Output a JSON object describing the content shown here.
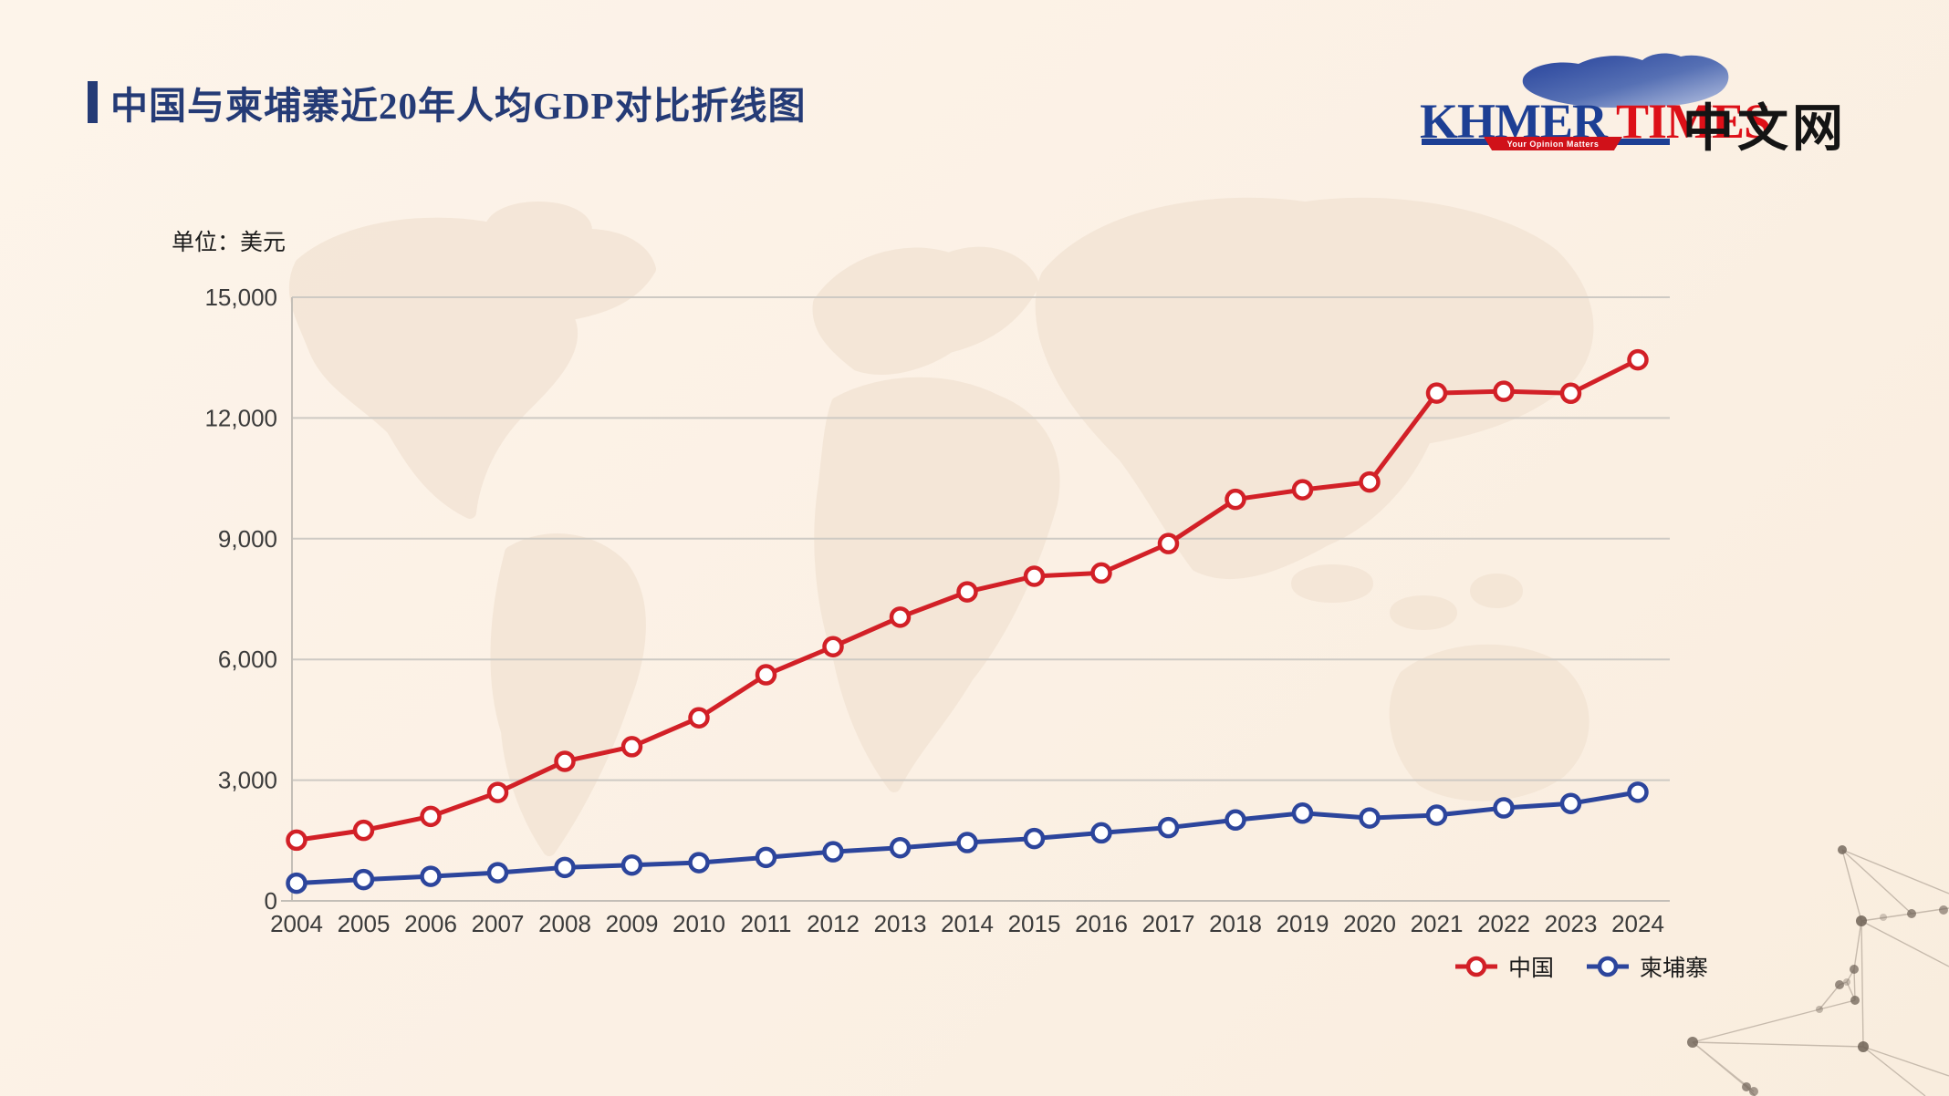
{
  "header": {
    "title": "中国与柬埔寨近20年人均GDP对比折线图"
  },
  "logo": {
    "khmer": "KHMER",
    "times": "TIMES",
    "tagline": "Your Opinion Matters",
    "site_name": "中文网",
    "khmer_color": "#1d3f94",
    "times_color": "#dd1018"
  },
  "chart_data": {
    "type": "line",
    "title": "中国与柬埔寨近20年人均GDP对比折线图",
    "unit_label": "单位：美元",
    "x": [
      "2004",
      "2005",
      "2006",
      "2007",
      "2008",
      "2009",
      "2010",
      "2011",
      "2012",
      "2013",
      "2014",
      "2015",
      "2016",
      "2017",
      "2018",
      "2019",
      "2020",
      "2021",
      "2022",
      "2023",
      "2024"
    ],
    "series": [
      {
        "name": "中国",
        "color": "#d22027",
        "values": [
          1509,
          1753,
          2099,
          2694,
          3468,
          3832,
          4550,
          5618,
          6317,
          7051,
          7679,
          8067,
          8148,
          8879,
          9977,
          10217,
          10409,
          12618,
          12663,
          12614,
          13445
        ]
      },
      {
        "name": "柬埔寨",
        "color": "#2c459c",
        "values": [
          440,
          530,
          610,
          700,
          830,
          890,
          950,
          1080,
          1220,
          1320,
          1450,
          1550,
          1690,
          1820,
          2010,
          2180,
          2060,
          2130,
          2310,
          2420,
          2700
        ]
      }
    ],
    "ylim": [
      0,
      15000
    ],
    "yticks": [
      0,
      3000,
      6000,
      9000,
      12000,
      15000
    ],
    "ytick_labels": [
      "0",
      "3,000",
      "6,000",
      "9,000",
      "12,000",
      "15,000"
    ],
    "grid": true,
    "legend_position": "bottom-right",
    "marker": "open-circle"
  }
}
